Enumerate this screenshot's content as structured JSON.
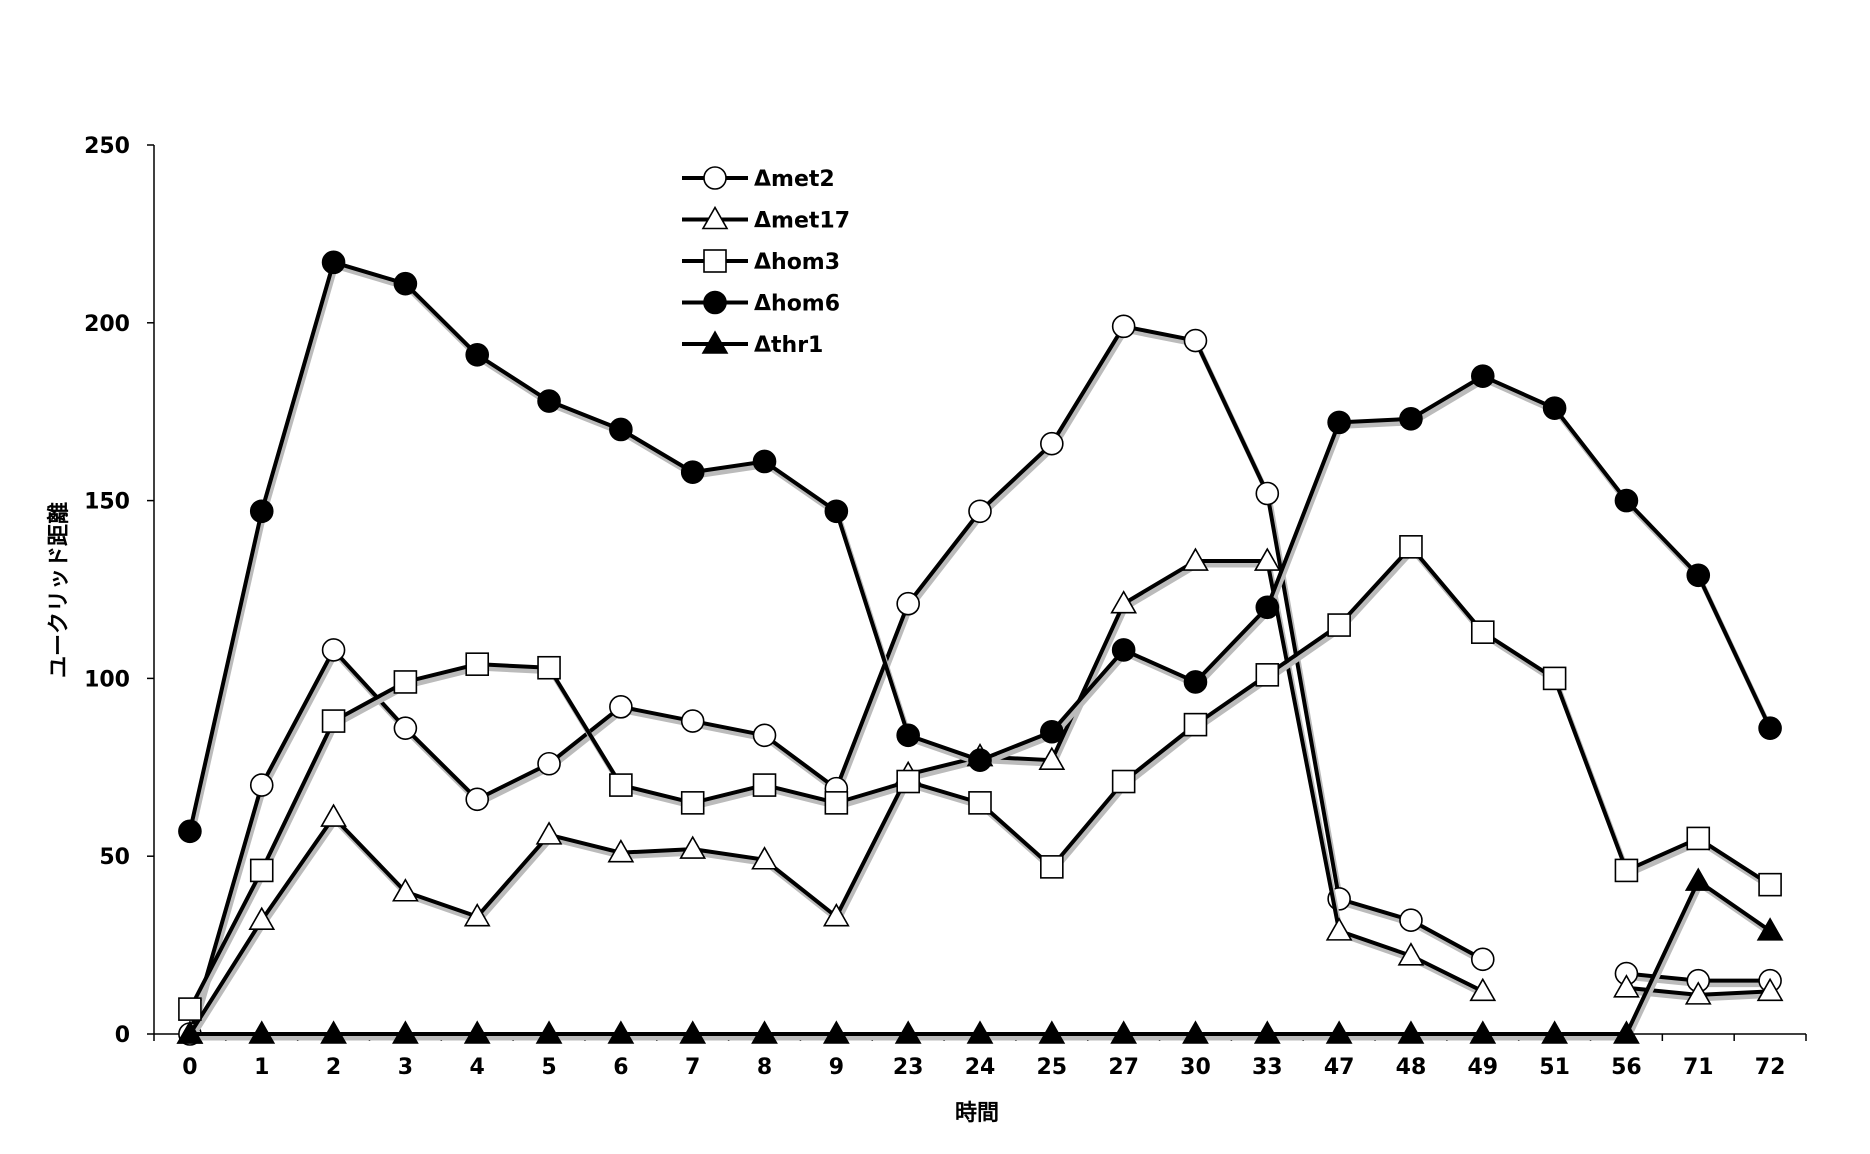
{
  "chart_data": {
    "type": "line",
    "title": "",
    "xlabel": "時間",
    "ylabel": "ユークリッド距離",
    "ylim": [
      0,
      250
    ],
    "yticks": [
      0,
      50,
      100,
      150,
      200,
      250
    ],
    "grid": false,
    "legend_position": "top-center",
    "categories": [
      "0",
      "1",
      "2",
      "3",
      "4",
      "5",
      "6",
      "7",
      "8",
      "9",
      "23",
      "24",
      "25",
      "27",
      "30",
      "33",
      "47",
      "48",
      "49",
      "51",
      "56",
      "71",
      "72"
    ],
    "series": [
      {
        "name": "Δmet2",
        "marker": "open-circle",
        "values": [
          0,
          70,
          108,
          86,
          66,
          76,
          92,
          88,
          84,
          69,
          121,
          147,
          166,
          199,
          195,
          152,
          38,
          32,
          21,
          null,
          17,
          15,
          15
        ]
      },
      {
        "name": "Δmet17",
        "marker": "open-triangle",
        "values": [
          0,
          32,
          61,
          40,
          33,
          56,
          51,
          52,
          49,
          33,
          73,
          78,
          77,
          121,
          133,
          133,
          29,
          22,
          12,
          null,
          13,
          11,
          12
        ]
      },
      {
        "name": "Δhom3",
        "marker": "open-square",
        "values": [
          7,
          46,
          88,
          99,
          104,
          103,
          70,
          65,
          70,
          65,
          71,
          65,
          47,
          71,
          87,
          101,
          115,
          137,
          113,
          100,
          46,
          55,
          42
        ]
      },
      {
        "name": "Δhom6",
        "marker": "filled-circle",
        "values": [
          57,
          147,
          217,
          211,
          191,
          178,
          170,
          158,
          161,
          147,
          84,
          77,
          85,
          108,
          99,
          120,
          172,
          173,
          185,
          176,
          150,
          129,
          86
        ]
      },
      {
        "name": "Δthr1",
        "marker": "filled-triangle",
        "values": [
          0,
          0,
          0,
          0,
          0,
          0,
          0,
          0,
          0,
          0,
          0,
          0,
          0,
          0,
          0,
          0,
          0,
          0,
          0,
          0,
          0,
          43,
          29
        ]
      }
    ]
  }
}
